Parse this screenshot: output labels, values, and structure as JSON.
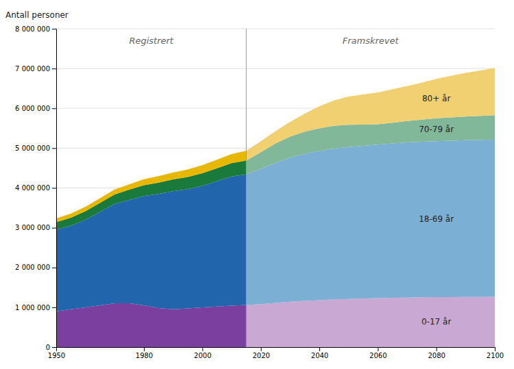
{
  "chart_data": {
    "type": "area",
    "stacked": true,
    "grid": true,
    "ylabel": "Antall personer",
    "section_labels": [
      "Registrert",
      "Framskrevet"
    ],
    "divider_x": 2015,
    "xlim": [
      1950,
      2100
    ],
    "ylim": [
      0,
      8000000
    ],
    "xticks": [
      1950,
      1980,
      2000,
      2020,
      2040,
      2060,
      2080,
      2100
    ],
    "yticks": [
      0,
      {
        "value": 1000000,
        "label": "1 000 000"
      },
      {
        "value": 2000000,
        "label": "2 000 000"
      },
      {
        "value": 3000000,
        "label": "3 000 000"
      },
      {
        "value": 4000000,
        "label": "4 000 000"
      },
      {
        "value": 5000000,
        "label": "5 000 000"
      },
      {
        "value": 6000000,
        "label": "6 000 000"
      },
      {
        "value": 7000000,
        "label": "7 000 000"
      },
      {
        "value": 8000000,
        "label": "8 000 000"
      }
    ],
    "series": [
      {
        "color": "#7B3FA0",
        "x": [
          1950,
          1955,
          1960,
          1965,
          1970,
          1975,
          1980,
          1985,
          1990,
          1995,
          2000,
          2005,
          2010,
          2015
        ],
        "values": [
          900000,
          950000,
          1000000,
          1050000,
          1100000,
          1100000,
          1050000,
          980000,
          950000,
          970000,
          1000000,
          1020000,
          1040000,
          1060000
        ]
      },
      {
        "color": "#2166AC",
        "x": [
          1950,
          1955,
          1960,
          1965,
          1970,
          1975,
          1980,
          1985,
          1990,
          1995,
          2000,
          2005,
          2010,
          2015
        ],
        "values": [
          2050000,
          2100000,
          2200000,
          2350000,
          2500000,
          2600000,
          2750000,
          2870000,
          2970000,
          3000000,
          3050000,
          3150000,
          3250000,
          3280000
        ]
      },
      {
        "color": "#1A7A3C",
        "x": [
          1950,
          1955,
          1960,
          1965,
          1970,
          1975,
          1980,
          1985,
          1990,
          1995,
          2000,
          2005,
          2010,
          2015
        ],
        "values": [
          190000,
          200000,
          215000,
          225000,
          235000,
          255000,
          270000,
          285000,
          295000,
          305000,
          320000,
          325000,
          335000,
          350000
        ]
      },
      {
        "color": "#E8B800",
        "x": [
          1950,
          1955,
          1960,
          1965,
          1970,
          1975,
          1980,
          1985,
          1990,
          1995,
          2000,
          2005,
          2010,
          2015
        ],
        "values": [
          95000,
          105000,
          112000,
          118000,
          127000,
          137000,
          150000,
          162000,
          173000,
          190000,
          200000,
          215000,
          228000,
          245000
        ]
      },
      {
        "name": "0-17 år",
        "color": "#C9A8D4",
        "x": [
          2015,
          2020,
          2025,
          2030,
          2035,
          2040,
          2045,
          2050,
          2055,
          2060,
          2065,
          2070,
          2075,
          2080,
          2085,
          2090,
          2095,
          2100
        ],
        "values": [
          1060000,
          1080000,
          1110000,
          1140000,
          1160000,
          1180000,
          1200000,
          1210000,
          1220000,
          1230000,
          1240000,
          1245000,
          1250000,
          1255000,
          1258000,
          1260000,
          1262000,
          1265000
        ]
      },
      {
        "name": "18-69 år",
        "color": "#7BAFD4",
        "x": [
          2015,
          2020,
          2025,
          2030,
          2035,
          2040,
          2045,
          2050,
          2055,
          2060,
          2065,
          2070,
          2075,
          2080,
          2085,
          2090,
          2095,
          2100
        ],
        "values": [
          3280000,
          3400000,
          3520000,
          3620000,
          3700000,
          3750000,
          3790000,
          3820000,
          3840000,
          3860000,
          3880000,
          3900000,
          3910000,
          3920000,
          3930000,
          3940000,
          3945000,
          3950000
        ]
      },
      {
        "name": "70-79 år",
        "color": "#80B899",
        "x": [
          2015,
          2020,
          2025,
          2030,
          2035,
          2040,
          2045,
          2050,
          2055,
          2060,
          2065,
          2070,
          2075,
          2080,
          2085,
          2090,
          2095,
          2100
        ],
        "values": [
          350000,
          420000,
          490000,
          530000,
          555000,
          565000,
          570000,
          555000,
          530000,
          510000,
          520000,
          535000,
          555000,
          575000,
          585000,
          595000,
          605000,
          615000
        ]
      },
      {
        "name": "80+ år",
        "color": "#F0D070",
        "x": [
          2015,
          2020,
          2025,
          2030,
          2035,
          2040,
          2045,
          2050,
          2055,
          2060,
          2065,
          2070,
          2075,
          2080,
          2085,
          2090,
          2095,
          2100
        ],
        "values": [
          245000,
          275000,
          310000,
          370000,
          450000,
          555000,
          640000,
          710000,
          760000,
          800000,
          840000,
          880000,
          930000,
          990000,
          1045000,
          1095000,
          1140000,
          1185000
        ]
      }
    ]
  }
}
